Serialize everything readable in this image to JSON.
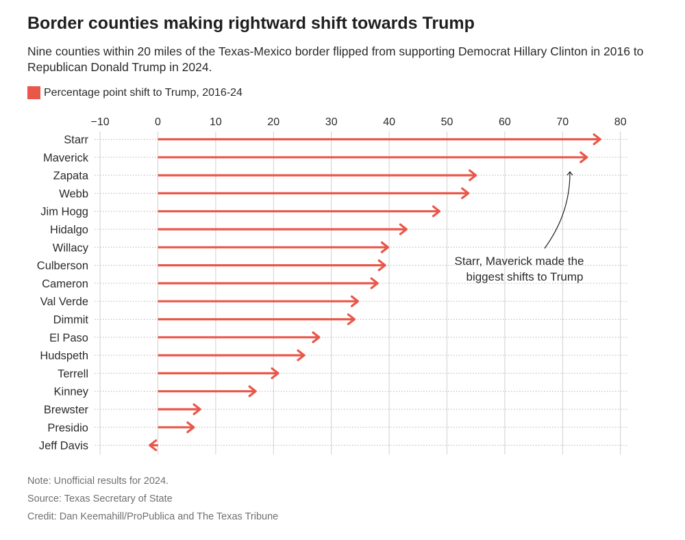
{
  "header": {
    "title": "Border counties making rightward shift towards Trump",
    "subtitle": "Nine counties within 20 miles of the Texas-Mexico border flipped from supporting Democrat Hillary Clinton in 2016 to Republican Donald Trump in 2024."
  },
  "legend": {
    "label": "Percentage point shift to Trump, 2016-24",
    "color": "#e8574a"
  },
  "footer": {
    "note": "Note: Unofficial results for 2024.",
    "source": "Source: Texas Secretary of State",
    "credit": "Credit: Dan Keemahill/ProPublica and The Texas Tribune"
  },
  "chart_data": {
    "type": "bar",
    "orientation": "horizontal",
    "mark": "arrow",
    "title": "Border counties making rightward shift towards Trump",
    "xlabel": "Percentage point shift to Trump, 2016-24",
    "ylabel": "",
    "xlim": [
      -10,
      80
    ],
    "xticks": [
      -10,
      0,
      10,
      20,
      30,
      40,
      50,
      60,
      70,
      80
    ],
    "xtick_labels": [
      "−10",
      "0",
      "10",
      "20",
      "30",
      "40",
      "50",
      "60",
      "70",
      "80"
    ],
    "grid": true,
    "color": "#e8574a",
    "categories": [
      "Starr",
      "Maverick",
      "Zapata",
      "Webb",
      "Jim Hogg",
      "Hidalgo",
      "Willacy",
      "Culberson",
      "Cameron",
      "Val Verde",
      "Dimmit",
      "El Paso",
      "Hudspeth",
      "Terrell",
      "Kinney",
      "Brewster",
      "Presidio",
      "Jeff Davis"
    ],
    "values": [
      76.5,
      74.2,
      55.0,
      53.7,
      48.7,
      43.0,
      39.8,
      39.3,
      38.0,
      34.6,
      34.0,
      27.9,
      25.3,
      20.8,
      16.9,
      7.3,
      6.2,
      -1.4
    ],
    "annotation": {
      "text_line1": "Starr, Maverick made the",
      "text_line2": "biggest shifts to Trump"
    }
  }
}
